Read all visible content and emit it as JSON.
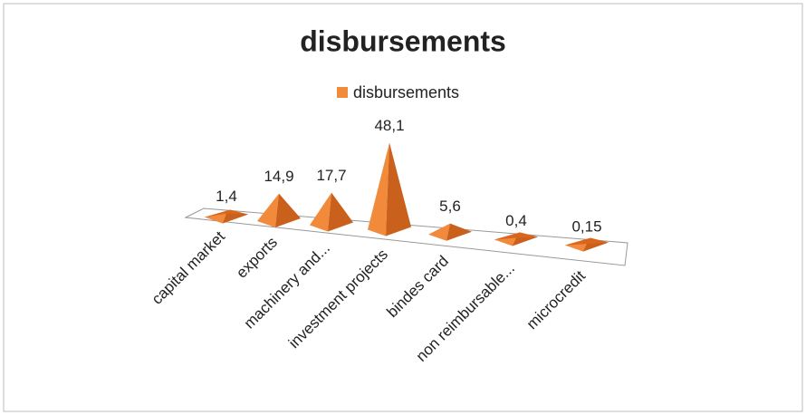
{
  "chart_data": {
    "type": "pyramid",
    "title": "disbursements",
    "categories": [
      "capital market",
      "exports",
      "machinery and...",
      "investment projects",
      "bindes card",
      "non reimbursable...",
      "microcredit"
    ],
    "series": [
      {
        "name": "disbursements",
        "color": "#f28a3c",
        "values": [
          1.4,
          14.9,
          17.7,
          48.1,
          5.6,
          0.4,
          0.15
        ],
        "value_labels": [
          "1,4",
          "14,9",
          "17,7",
          "48,1",
          "5,6",
          "0,4",
          "0,15"
        ]
      }
    ],
    "legend": "top"
  }
}
